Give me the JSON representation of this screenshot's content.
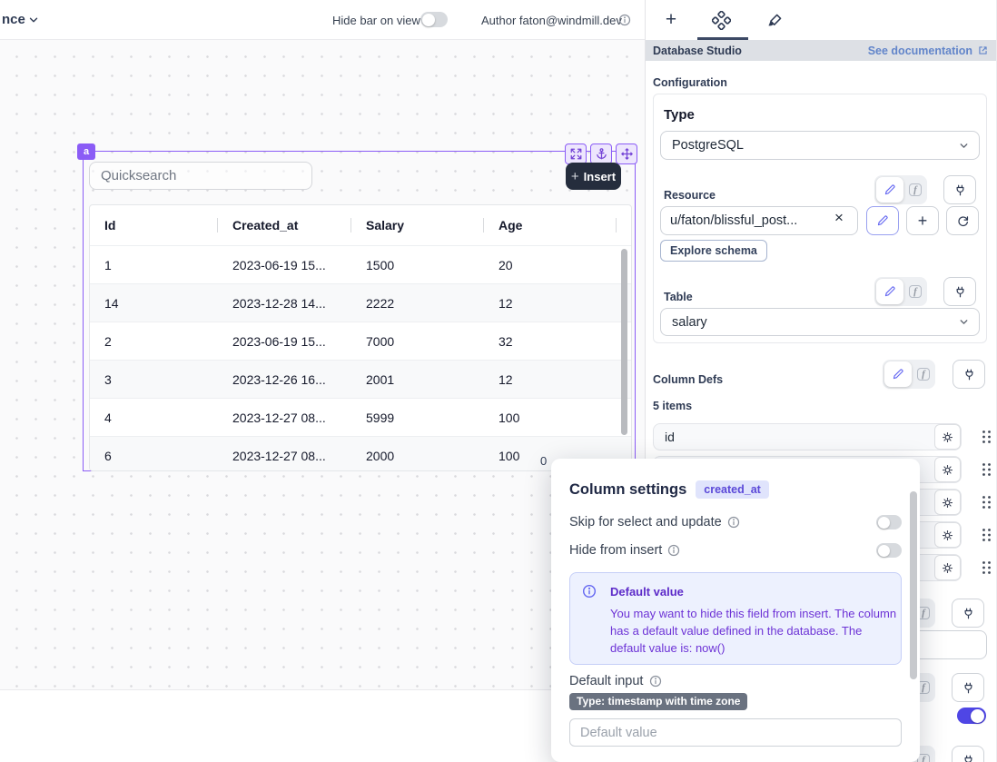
{
  "topbar": {
    "breadcrumb": "nce",
    "hide_bar_label": "Hide bar on view",
    "author_label": "Author faton@windmill.dev"
  },
  "canvas": {
    "component": {
      "badge": "a",
      "quicksearch_placeholder": "Quicksearch",
      "insert_label": "Insert",
      "pagination_count": "0",
      "table": {
        "columns": [
          "Id",
          "Created_at",
          "Salary",
          "Age"
        ],
        "rows": [
          [
            "1",
            "2023-06-19 15...",
            "1500",
            "20"
          ],
          [
            "14",
            "2023-12-28 14...",
            "2222",
            "12"
          ],
          [
            "2",
            "2023-06-19 15...",
            "7000",
            "32"
          ],
          [
            "3",
            "2023-12-26 16...",
            "2001",
            "12"
          ],
          [
            "4",
            "2023-12-27 08...",
            "5999",
            "100"
          ],
          [
            "6",
            "2023-12-27 08...",
            "2000",
            "100"
          ]
        ]
      }
    }
  },
  "panel": {
    "header": {
      "title": "Database Studio",
      "doc_link": "See documentation"
    },
    "configuration_label": "Configuration",
    "type": {
      "label": "Type",
      "value": "PostgreSQL"
    },
    "resource": {
      "label": "Resource",
      "value": "u/faton/blissful_post...",
      "explore_label": "Explore schema"
    },
    "table": {
      "label": "Table",
      "value": "salary"
    },
    "column_defs": {
      "label": "Column Defs",
      "count_label": "5 items",
      "items": [
        "id",
        "",
        "",
        "",
        ""
      ]
    }
  },
  "modal": {
    "title": "Column settings",
    "column_badge": "created_at",
    "skip_label": "Skip for select and update",
    "hide_label": "Hide from insert",
    "alert": {
      "title": "Default value",
      "body": "You may want to hide this field from insert. The column has a default value defined in the database. The default value is: now()"
    },
    "default_input_label": "Default input",
    "type_badge": "Type: timestamp with time zone",
    "default_placeholder": "Default value"
  },
  "colors": {
    "accent_purple": "#8b5cf6",
    "indigo_active": "#6366f1",
    "toggle_on": "#4f46e5",
    "doc_link_blue": "#6285ca",
    "alert_text_purple": "#6d33d6",
    "insert_button_dark": "#252d3d",
    "type_badge_gray": "#6a7280"
  }
}
